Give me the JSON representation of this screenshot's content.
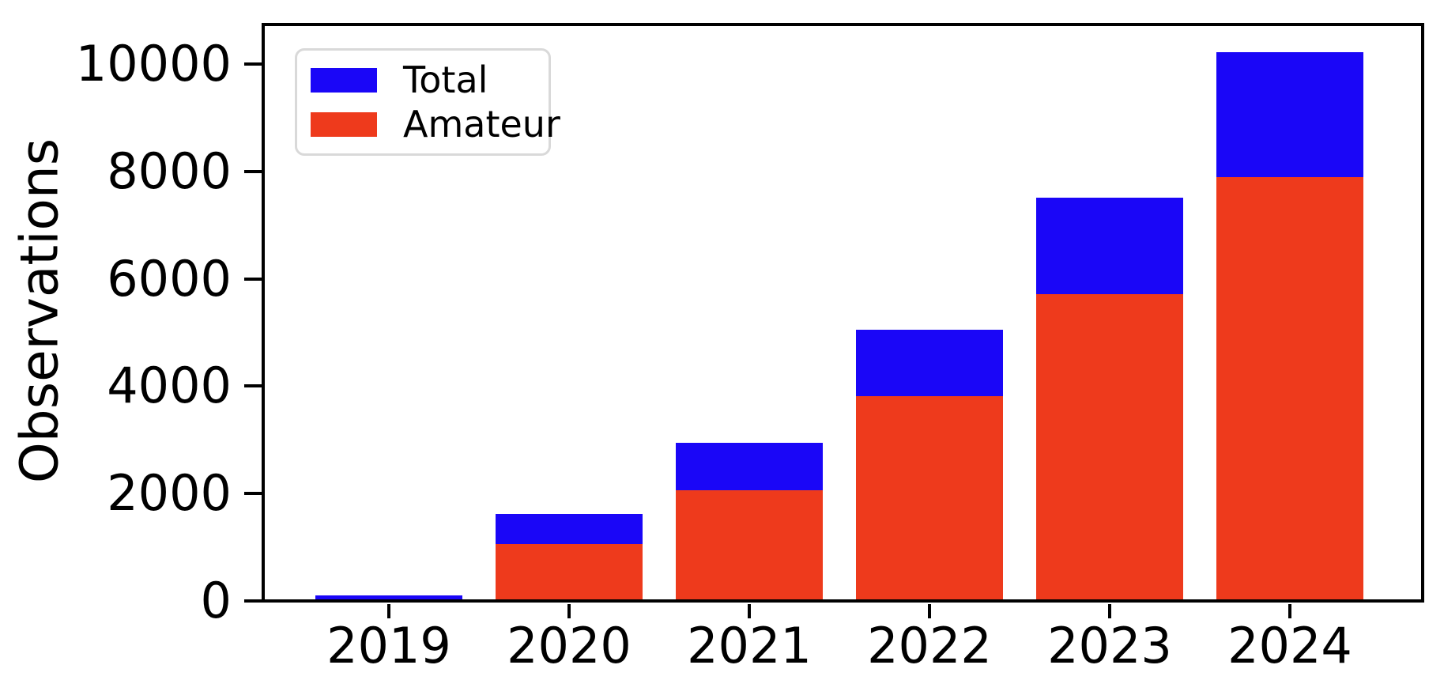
{
  "figure": {
    "ylabel": "Observations",
    "background_color": "#ffffff",
    "axis_color": "#000000"
  },
  "legend": {
    "position": "upper left",
    "items": [
      {
        "label": "Total",
        "color": "#1a06f7"
      },
      {
        "label": "Amateur",
        "color": "#ee3a1c"
      }
    ]
  },
  "chart_data": {
    "type": "bar",
    "style": "overlaid-bars (Amateur drawn in front of Total, both baseline 0)",
    "title": "",
    "xlabel": "",
    "ylabel": "Observations",
    "categories": [
      "2019",
      "2020",
      "2021",
      "2022",
      "2023",
      "2024"
    ],
    "series": [
      {
        "name": "Total",
        "color": "#1a06f7",
        "values": [
          100,
          1620,
          2950,
          5060,
          7510,
          10220
        ]
      },
      {
        "name": "Amateur",
        "color": "#ee3a1c",
        "values": [
          25,
          1060,
          2060,
          3810,
          5710,
          7890
        ]
      }
    ],
    "yticks": [
      0,
      2000,
      4000,
      6000,
      8000,
      10000
    ],
    "ylim": [
      0,
      10740
    ],
    "grid": false,
    "legend_position": "upper left",
    "tick_label_color": "#000000"
  }
}
